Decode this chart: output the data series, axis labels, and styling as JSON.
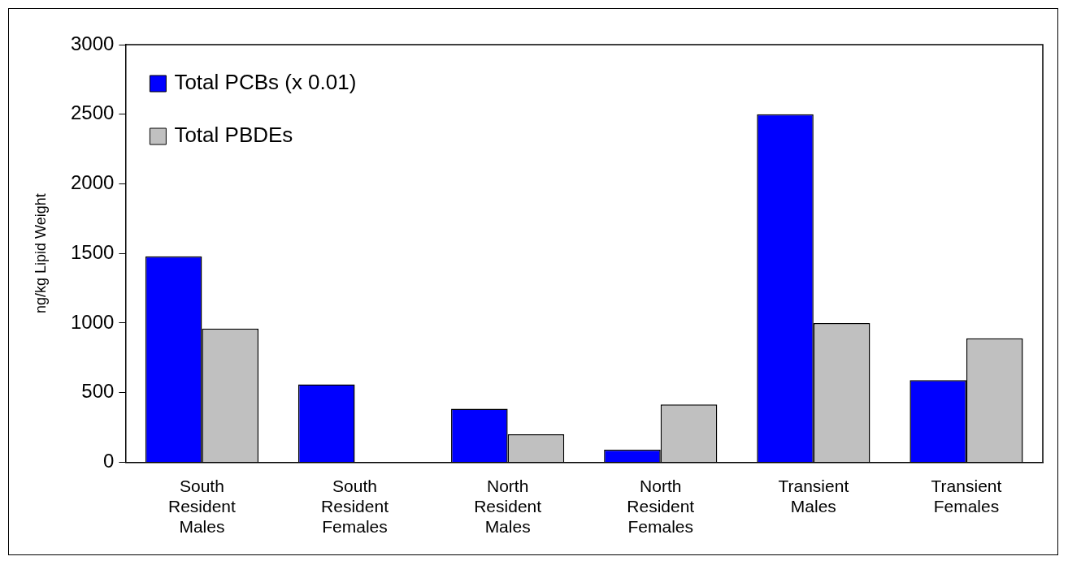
{
  "chart_data": {
    "type": "bar",
    "ylabel": "ng/kg Lipid Weight",
    "categories": [
      "South Resident Males",
      "South Resident Females",
      "North Resident Males",
      "North Resident Females",
      "Transient Males",
      "Transient Females"
    ],
    "series": [
      {
        "name": "Total PCBs (x 0.01)",
        "color": "#0000ff",
        "values": [
          1480,
          560,
          385,
          90,
          2500,
          590
        ]
      },
      {
        "name": "Total PBDEs",
        "color": "#c0c0c0",
        "values": [
          960,
          null,
          200,
          415,
          1000,
          890
        ]
      }
    ],
    "ylim": [
      0,
      3000
    ],
    "yticks": [
      0,
      500,
      1000,
      1500,
      2000,
      2500,
      3000
    ],
    "grid": false,
    "legend": "top left"
  }
}
